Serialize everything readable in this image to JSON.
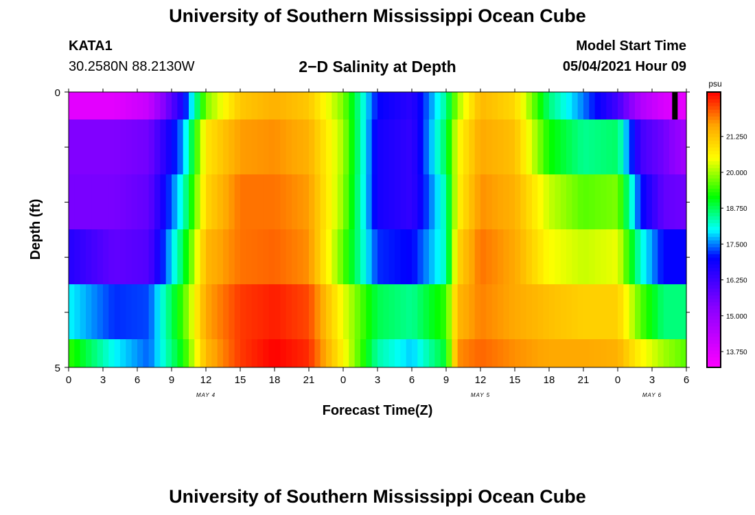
{
  "header": {
    "title": "University of Southern Mississippi Ocean Cube",
    "station_id": "KATA1",
    "coordinates": "30.2580N  88.2130W",
    "subtitle": "2−D Salinity at Depth",
    "model_start_label": "Model Start Time",
    "model_start_value": "05/04/2021 Hour 09"
  },
  "footer": {
    "title": "University of Southern Mississippi Ocean Cube"
  },
  "chart_data": {
    "type": "heatmap",
    "title": "2−D Salinity at Depth",
    "xlabel": "Forecast Time(Z)",
    "ylabel": "Depth (ft)",
    "x_tick_labels": [
      "0",
      "3",
      "6",
      "9",
      "12",
      "15",
      "18",
      "21",
      "0",
      "3",
      "6",
      "9",
      "12",
      "15",
      "18",
      "21",
      "0",
      "3",
      "6"
    ],
    "date_labels": [
      {
        "label": "MAY 4",
        "hour": 12
      },
      {
        "label": "MAY 5",
        "hour": 36
      },
      {
        "label": "MAY 6",
        "hour": 51
      }
    ],
    "y_tick_labels": [
      "0",
      "5"
    ],
    "ylim": [
      0,
      5
    ],
    "xlim_hours": [
      0,
      54
    ],
    "colorbar": {
      "unit": "psu",
      "min": 13.2,
      "max": 22.8,
      "tick_labels": [
        "13.750",
        "15.000",
        "16.250",
        "17.500",
        "18.750",
        "20.000",
        "21.250"
      ],
      "tick_values": [
        13.75,
        15.0,
        16.25,
        17.5,
        18.75,
        20.0,
        21.25
      ]
    },
    "x_hours": [
      0,
      4,
      7,
      10,
      12,
      15,
      18,
      21,
      24,
      27,
      30,
      33,
      34,
      36,
      39,
      42,
      45,
      48,
      50,
      52,
      54
    ],
    "depth_layers": [
      {
        "depth": "0-1",
        "values": [
          13.7,
          13.7,
          14.2,
          16.8,
          19.8,
          21.2,
          21.5,
          21.2,
          19.8,
          17.0,
          16.5,
          18.5,
          20.0,
          21.4,
          21.0,
          18.6,
          17.5,
          16.2,
          14.6,
          13.9,
          13.6
        ]
      },
      {
        "depth": "1-2",
        "values": [
          15.4,
          15.4,
          15.6,
          17.6,
          20.8,
          21.7,
          21.8,
          21.5,
          20.0,
          16.8,
          16.4,
          18.8,
          20.5,
          21.6,
          21.3,
          19.2,
          18.5,
          18.7,
          16.2,
          15.6,
          14.8
        ]
      },
      {
        "depth": "2-3",
        "values": [
          15.5,
          15.5,
          15.8,
          18.2,
          21.0,
          22.0,
          22.0,
          21.7,
          19.9,
          16.8,
          16.4,
          18.4,
          20.6,
          21.8,
          21.5,
          20.2,
          19.6,
          19.8,
          17.1,
          15.8,
          15.6
        ]
      },
      {
        "depth": "3-4",
        "values": [
          16.6,
          15.8,
          16.0,
          18.8,
          21.4,
          22.0,
          22.1,
          21.8,
          19.6,
          17.2,
          17.0,
          18.3,
          21.0,
          22.0,
          21.6,
          20.5,
          20.2,
          20.4,
          18.2,
          17.0,
          17.0
        ]
      },
      {
        "depth": "4-5",
        "values": [
          18.0,
          17.2,
          17.3,
          19.5,
          21.6,
          22.4,
          22.6,
          22.3,
          20.4,
          18.8,
          18.5,
          19.4,
          21.4,
          21.9,
          21.6,
          21.3,
          21.1,
          21.1,
          19.6,
          18.6,
          18.6
        ]
      },
      {
        "depth": "4.6-5",
        "values": [
          19.4,
          18.0,
          17.4,
          19.2,
          21.4,
          22.4,
          22.8,
          22.5,
          20.6,
          18.4,
          17.8,
          19.0,
          21.8,
          22.1,
          21.8,
          21.6,
          21.6,
          21.5,
          20.6,
          20.0,
          19.6
        ]
      }
    ],
    "marker_hour": 53,
    "colors": {
      "magenta": "#ff00ff",
      "violet": "#8800ff",
      "blue": "#0000ff",
      "cyan": "#00ffff",
      "green": "#00ff00",
      "yellow": "#ffff00",
      "orange": "#ffa500",
      "red": "#ff0000"
    }
  }
}
